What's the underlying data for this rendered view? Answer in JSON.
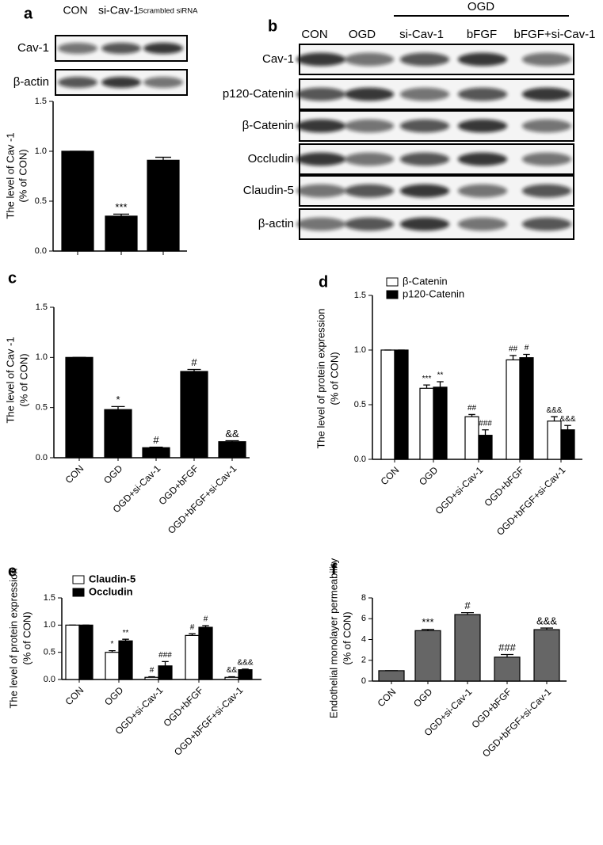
{
  "blot_a": {
    "rows": [
      "Cav-1",
      "β-actin"
    ]
  },
  "blot_b": {
    "panel": "b",
    "group_label": "OGD",
    "columns": [
      "CON",
      "OGD",
      "si-Cav-1",
      "bFGF",
      "bFGF+si-Cav-1"
    ],
    "rows": [
      "Cav-1",
      "p120-Catenin",
      "β-Catenin",
      "Occludin",
      "Claudin-5",
      "β-actin"
    ]
  },
  "chart_data": [
    {
      "type": "bar",
      "panel": "a",
      "ylabel": [
        "The level of Cav -1",
        "(% of CON)"
      ],
      "categories": [
        "CON",
        "si-Cav-1",
        "Scrambled siRNA"
      ],
      "values": [
        1.0,
        0.35,
        0.91
      ],
      "errors": [
        0,
        0.02,
        0.03
      ],
      "annotations": [
        null,
        "***",
        null
      ],
      "color": "#000000",
      "ylim": [
        0,
        1.5
      ],
      "yticks": [
        {
          "value": 0,
          "label": "0.0"
        },
        0.5,
        {
          "value": 1,
          "label": "1.0"
        },
        1.5
      ]
    },
    {
      "type": "bar",
      "panel": "c",
      "ylabel": [
        "The level of Cav -1",
        "(% of CON)"
      ],
      "categories": [
        "CON",
        "OGD",
        "OGD+si-Cav-1",
        "OGD+bFGF",
        "OGD+bFGF+si-Cav-1"
      ],
      "values": [
        1.0,
        0.48,
        0.1,
        0.86,
        0.16
      ],
      "errors": [
        0,
        0.03,
        0.005,
        0.02,
        0.01
      ],
      "annotations": [
        null,
        "*",
        "#",
        "#",
        "&&"
      ],
      "color": "#000000",
      "ylim": [
        0,
        1.5
      ],
      "yticks": [
        {
          "value": 0,
          "label": "0.0"
        },
        0.5,
        {
          "value": 1,
          "label": "1.0"
        },
        1.5
      ]
    },
    {
      "type": "grouped_bar",
      "panel": "d",
      "ylabel": [
        "The level of protein expression",
        "(% of CON)"
      ],
      "categories": [
        "CON",
        "OGD",
        "OGD+si-Cav-1",
        "OGD+bFGF",
        "OGD+bFGF+si-Cav-1"
      ],
      "series": [
        {
          "name": "β-Catenin",
          "color": "#ffffff",
          "values": [
            1.0,
            0.65,
            0.39,
            0.91,
            0.35
          ],
          "errors": [
            0,
            0.03,
            0.02,
            0.04,
            0.04
          ],
          "annotations": [
            null,
            "***",
            "##",
            "##",
            "&&&"
          ]
        },
        {
          "name": "p120-Catenin",
          "color": "#000000",
          "values": [
            1.0,
            0.66,
            0.22,
            0.93,
            0.27
          ],
          "errors": [
            0,
            0.05,
            0.05,
            0.03,
            0.04
          ],
          "annotations": [
            null,
            "**",
            "###",
            "#",
            "&&&"
          ]
        }
      ],
      "ylim": [
        0,
        1.5
      ],
      "yticks": [
        {
          "value": 0,
          "label": "0.0"
        },
        0.5,
        {
          "value": 1,
          "label": "1.0"
        },
        1.5
      ]
    },
    {
      "type": "grouped_bar",
      "panel": "e",
      "ylabel": [
        "The level of protein expression",
        "(% of CON)"
      ],
      "categories": [
        "CON",
        "OGD",
        "OGD+si-Cav-1",
        "OGD+bFGF",
        "OGD+bFGF+si-Cav-1"
      ],
      "series": [
        {
          "name": "Claudin-5",
          "color": "#ffffff",
          "values": [
            1.0,
            0.5,
            0.04,
            0.81,
            0.04
          ],
          "errors": [
            0,
            0.03,
            0.01,
            0.03,
            0.01
          ],
          "annotations": [
            null,
            "*",
            "#",
            "#",
            "&&"
          ]
        },
        {
          "name": "Occludin",
          "color": "#000000",
          "values": [
            1.0,
            0.71,
            0.25,
            0.96,
            0.18
          ],
          "errors": [
            0,
            0.03,
            0.08,
            0.03,
            0.01
          ],
          "annotations": [
            null,
            "**",
            "###",
            "#",
            "&&&"
          ]
        }
      ],
      "ylim": [
        0,
        1.5
      ],
      "yticks": [
        {
          "value": 0,
          "label": "0.0"
        },
        0.5,
        {
          "value": 1,
          "label": "1.0"
        },
        1.5
      ]
    },
    {
      "type": "bar",
      "panel": "f",
      "ylabel": [
        "Endothelial monolayer permeability",
        "(% of CON)"
      ],
      "categories": [
        "CON",
        "OGD",
        "OGD+si-Cav-1",
        "OGD+bFGF",
        "OGD+bFGF+si-Cav-1"
      ],
      "values": [
        1,
        4.85,
        6.4,
        2.3,
        4.95
      ],
      "errors": [
        0,
        0.12,
        0.18,
        0.25,
        0.15
      ],
      "annotations": [
        null,
        "***",
        "#",
        "###",
        "&&&"
      ],
      "color": "#666666",
      "ylim": [
        0,
        8
      ],
      "yticks": [
        0,
        2,
        4,
        6,
        8
      ]
    }
  ]
}
